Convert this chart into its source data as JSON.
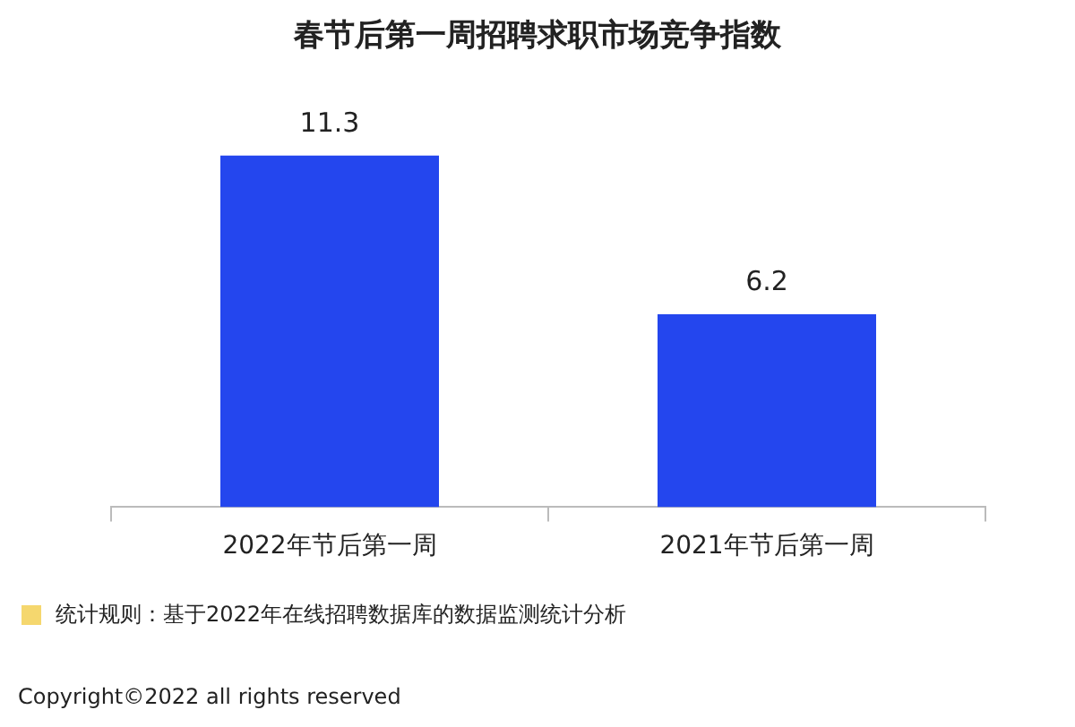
{
  "chart_data": {
    "type": "bar",
    "title": "春节后第一周招聘求职市场竞争指数",
    "categories": [
      "2022年节后第一周",
      "2021年节后第一周"
    ],
    "values": [
      11.3,
      6.2
    ],
    "color": "#2446ee",
    "data_labels": true,
    "legend": false,
    "grid": false,
    "annotations": [
      "统计规则：基于2022年在线招聘数据库的数据监测统计分析",
      "Copyright©2022 all rights reserved"
    ]
  }
}
